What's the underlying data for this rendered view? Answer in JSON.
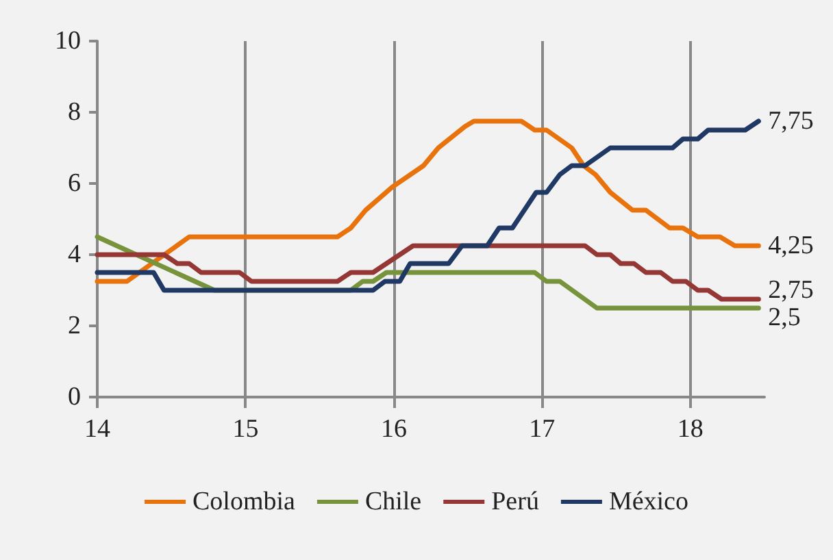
{
  "chart_data": {
    "type": "line",
    "xlim": [
      14,
      18.5
    ],
    "xticks": [
      14,
      15,
      16,
      17,
      18
    ],
    "ylim": [
      0,
      10
    ],
    "yticks": [
      0,
      2,
      4,
      6,
      8,
      10
    ],
    "grid": "x",
    "legend": "bottom",
    "marker": "none",
    "line_style": "solid",
    "series": [
      {
        "name": "Colombia",
        "color": "#e8720c",
        "x": [
          14.0,
          14.2,
          14.62,
          15.62,
          15.71,
          15.81,
          15.99,
          16.2,
          16.3,
          16.48,
          16.54,
          16.86,
          16.95,
          17.03,
          17.2,
          17.28,
          17.36,
          17.46,
          17.61,
          17.7,
          17.86,
          17.95,
          18.05,
          18.2,
          18.3,
          18.46
        ],
        "values": [
          3.25,
          3.25,
          4.5,
          4.5,
          4.75,
          5.25,
          5.9,
          6.5,
          7.0,
          7.6,
          7.75,
          7.75,
          7.5,
          7.5,
          7.0,
          6.5,
          6.25,
          5.75,
          5.25,
          5.25,
          4.75,
          4.75,
          4.5,
          4.5,
          4.25,
          4.25
        ],
        "value_labels": [
          null,
          null,
          null,
          null,
          null,
          null,
          null,
          null,
          null,
          null,
          null,
          null,
          null,
          null,
          null,
          null,
          null,
          null,
          null,
          null,
          null,
          null,
          null,
          null,
          null,
          "4,25"
        ]
      },
      {
        "name": "Chile",
        "color": "#77933c",
        "x": [
          14.0,
          14.79,
          15.71,
          15.79,
          15.86,
          15.95,
          16.95,
          17.03,
          17.12,
          17.37,
          18.46
        ],
        "values": [
          4.5,
          3.0,
          3.0,
          3.25,
          3.25,
          3.5,
          3.5,
          3.25,
          3.25,
          2.5,
          2.5
        ],
        "value_labels": [
          null,
          null,
          null,
          null,
          null,
          null,
          null,
          null,
          null,
          null,
          "2,5"
        ]
      },
      {
        "name": "Perú",
        "color": "#953735",
        "x": [
          14.0,
          14.45,
          14.54,
          14.62,
          14.7,
          14.96,
          15.04,
          15.62,
          15.71,
          15.86,
          16.13,
          17.29,
          17.37,
          17.46,
          17.53,
          17.62,
          17.7,
          17.8,
          17.88,
          17.97,
          18.05,
          18.12,
          18.21,
          18.46
        ],
        "values": [
          4.0,
          4.0,
          3.75,
          3.75,
          3.5,
          3.5,
          3.25,
          3.25,
          3.5,
          3.5,
          4.25,
          4.25,
          4.0,
          4.0,
          3.75,
          3.75,
          3.5,
          3.5,
          3.25,
          3.25,
          3.0,
          3.0,
          2.75,
          2.75
        ],
        "value_labels": [
          null,
          null,
          null,
          null,
          null,
          null,
          null,
          null,
          null,
          null,
          null,
          null,
          null,
          null,
          null,
          null,
          null,
          null,
          null,
          null,
          null,
          null,
          null,
          "2,75"
        ]
      },
      {
        "name": "México",
        "color": "#1f3864",
        "x": [
          14.0,
          14.38,
          14.45,
          15.86,
          15.94,
          16.04,
          16.11,
          16.37,
          16.46,
          16.63,
          16.71,
          16.8,
          16.96,
          17.03,
          17.12,
          17.2,
          17.29,
          17.46,
          17.88,
          17.95,
          18.05,
          18.12,
          18.37,
          18.46
        ],
        "values": [
          3.5,
          3.5,
          3.0,
          3.0,
          3.25,
          3.25,
          3.75,
          3.75,
          4.25,
          4.25,
          4.75,
          4.75,
          5.75,
          5.75,
          6.25,
          6.5,
          6.5,
          7.0,
          7.0,
          7.25,
          7.25,
          7.5,
          7.5,
          7.75
        ],
        "value_labels": [
          null,
          null,
          null,
          null,
          null,
          null,
          null,
          null,
          null,
          null,
          null,
          null,
          null,
          null,
          null,
          null,
          null,
          null,
          null,
          null,
          null,
          null,
          null,
          "7,75"
        ]
      }
    ]
  }
}
